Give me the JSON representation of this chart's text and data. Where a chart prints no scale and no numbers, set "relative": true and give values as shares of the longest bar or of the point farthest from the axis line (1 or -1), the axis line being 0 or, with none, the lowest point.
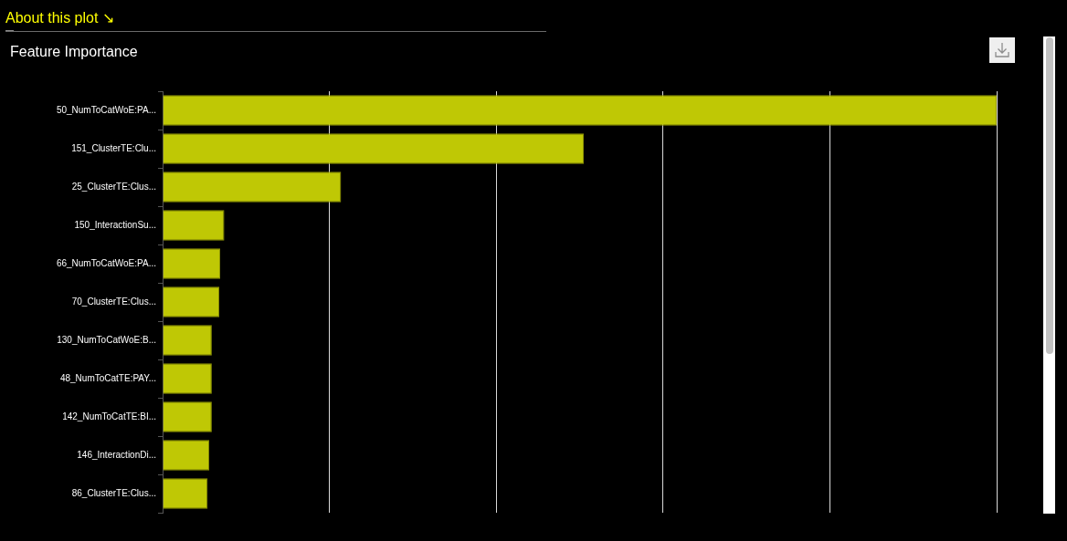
{
  "chart_data": {
    "type": "bar",
    "orientation": "horizontal",
    "relative": true,
    "title": "Feature Importance",
    "annotations": [
      "About this plot ↘"
    ],
    "categories": [
      "50_NumToCatWoE:PA...",
      "151_ClusterTE:Clu...",
      "25_ClusterTE:Clus...",
      "150_InteractionSu...",
      "66_NumToCatWoE:PA...",
      "70_ClusterTE:Clus...",
      "130_NumToCatWoE:B...",
      "48_NumToCatTE:PAY...",
      "142_NumToCatTE:BI...",
      "146_InteractionDi...",
      "86_ClusterTE:Clus..."
    ],
    "values": [
      1,
      0.505,
      0.214,
      0.074,
      0.069,
      0.068,
      0.059,
      0.059,
      0.059,
      0.056,
      0.054
    ],
    "color": "#bfc805",
    "grid": "x"
  }
}
